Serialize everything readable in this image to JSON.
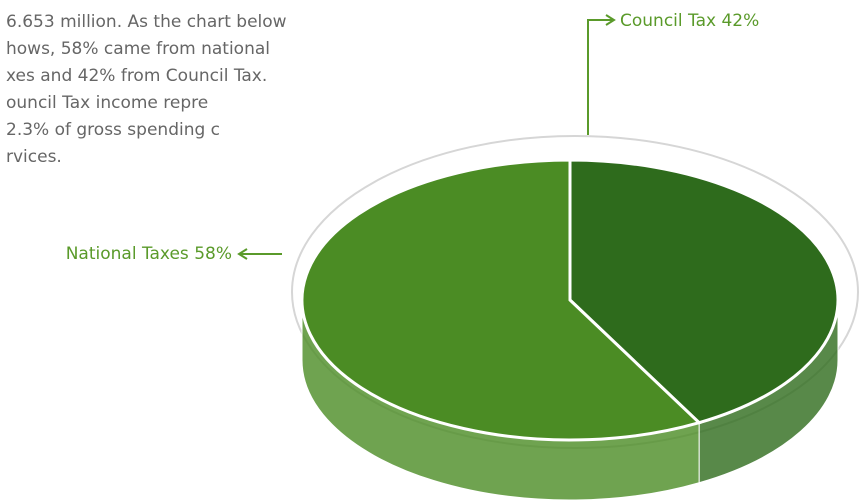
{
  "paragraph": [
    "6.653 million. As the chart below",
    "hows, 58% came from national",
    "xes and 42% from Council Tax.",
    "ouncil Tax income repre",
    "2.3% of gross spending c",
    "rvices."
  ],
  "chart_data": {
    "type": "pie",
    "categories": [
      "National Taxes",
      "Council Tax"
    ],
    "values": [
      58,
      42
    ],
    "value_labels": [
      "58%",
      "42%"
    ],
    "colors": [
      "#4b8c24",
      "#2e6b1c"
    ]
  }
}
